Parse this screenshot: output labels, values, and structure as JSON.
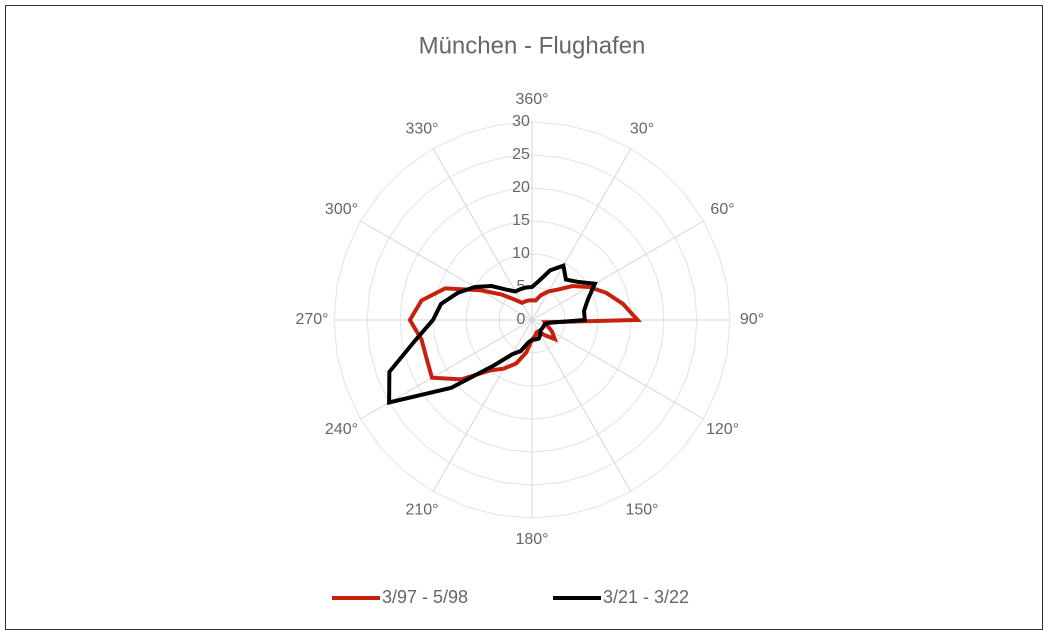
{
  "chart_data": {
    "type": "radar",
    "title": "München - Flughafen",
    "categories": [
      "360°",
      null,
      null,
      "30°",
      null,
      null,
      "60°",
      null,
      null,
      "90°",
      null,
      null,
      "120°",
      null,
      null,
      "150°",
      null,
      null,
      "180°",
      null,
      null,
      "210°",
      null,
      null,
      "240°",
      null,
      null,
      "270°",
      null,
      null,
      "300°",
      null,
      null,
      "330°",
      null,
      null
    ],
    "series": [
      {
        "name": "3/97 - 5/98",
        "color": "#c8200e",
        "values": [
          3,
          3,
          4,
          5,
          6,
          8,
          10,
          12,
          14,
          16,
          2,
          2.5,
          3.5,
          4.5,
          3,
          2,
          2,
          2.5,
          3,
          5,
          7,
          8.5,
          10,
          14,
          17.5,
          17,
          17,
          18.5,
          17,
          14,
          9,
          6,
          4,
          3,
          3,
          3
        ]
      },
      {
        "name": "3/21 - 3/22",
        "color": "#000000",
        "values": [
          5,
          6,
          8,
          9.5,
          8,
          9,
          11,
          9,
          8,
          8,
          2.5,
          2,
          2,
          2,
          2,
          2.5,
          3,
          3,
          3,
          3.5,
          5,
          6,
          9,
          16,
          25,
          23,
          18,
          15,
          14,
          12,
          10,
          8,
          6,
          5,
          5,
          5
        ]
      }
    ],
    "rlim": [
      0,
      30
    ],
    "rticks": [
      0,
      5,
      10,
      15,
      20,
      25,
      30
    ],
    "grid": true,
    "legend": "bottom"
  }
}
